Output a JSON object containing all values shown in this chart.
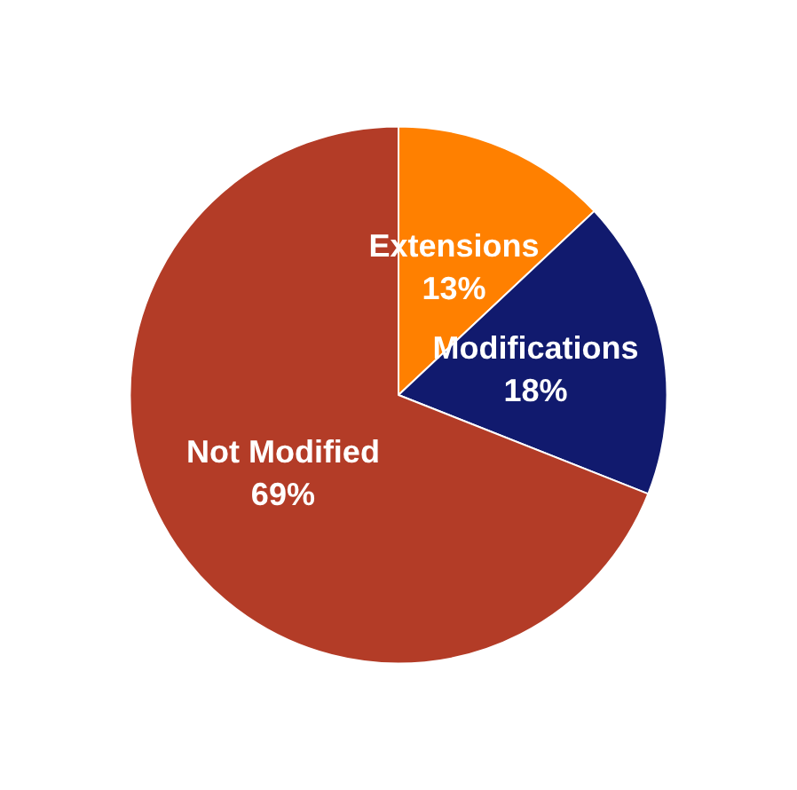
{
  "chart_data": {
    "type": "pie",
    "categories": [
      "Extensions",
      "Modifications",
      "Not Modified"
    ],
    "values": [
      13,
      18,
      69
    ],
    "value_labels": [
      "13%",
      "18%",
      "69%"
    ],
    "colors": [
      "#ff8000",
      "#111a6e",
      "#b33c27"
    ],
    "legend": false
  }
}
